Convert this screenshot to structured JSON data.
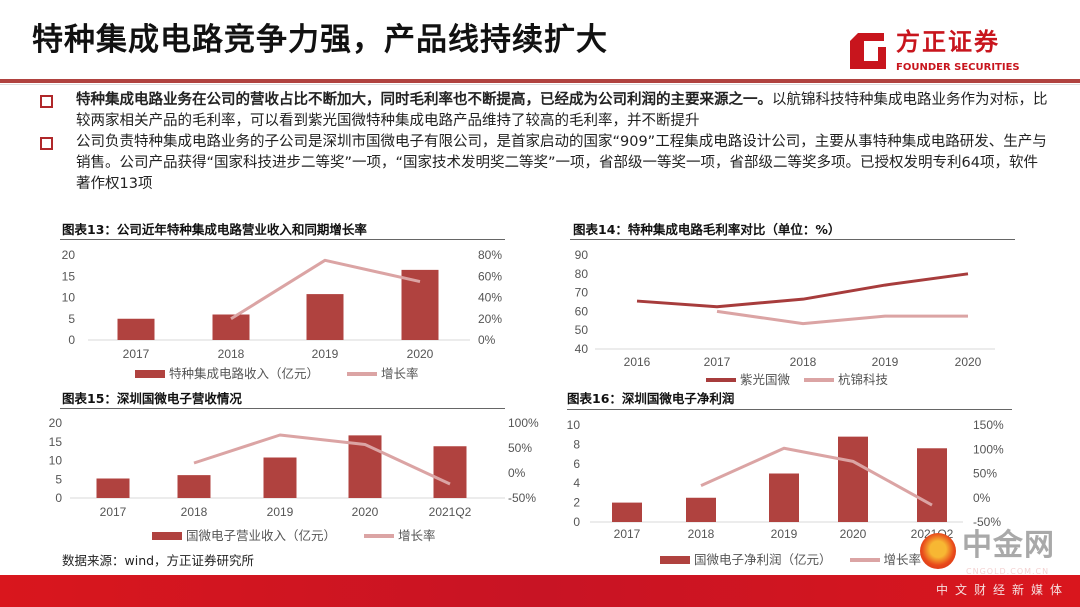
{
  "header": {
    "title": "特种集成电路竞争力强，产品线持续扩大",
    "logo_cn": "方正证券",
    "logo_en": "FOUNDER SECURITIES"
  },
  "bullets": [
    {
      "bold": "特种集成电路业务在公司的营收占比不断加大，同时毛利率也不断提高，已经成为公司利润的主要来源之一。",
      "text": "以航锦科技特种集成电路业务作为对标，比较两家相关产品的毛利率，可以看到紫光国微特种集成电路产品维持了较高的毛利率，并不断提升"
    },
    {
      "bold": "",
      "text": "公司负责特种集成电路业务的子公司是深圳市国微电子有限公司，是首家启动的国家“909”工程集成电路设计公司，主要从事特种集成电路研发、生产与销售。公司产品获得“国家科技进步二等奖”一项，“国家技术发明奖二等奖”一项，省部级一等奖一项，省部级二等奖多项。已授权发明专利64项，软件著作权13项"
    }
  ],
  "chart_data": [
    {
      "type": "bar+line",
      "title": "图表13：公司近年特种集成电路营业收入和同期增长率",
      "categories": [
        "2017",
        "2018",
        "2019",
        "2020"
      ],
      "series": [
        {
          "name": "特种集成电路收入（亿元）",
          "type": "bar",
          "axis": "left",
          "values": [
            5.0,
            6.0,
            10.8,
            16.5
          ]
        },
        {
          "name": "增长率",
          "type": "line",
          "axis": "right",
          "values": [
            null,
            20,
            75,
            55
          ]
        }
      ],
      "ylim": [
        0,
        20
      ],
      "yticks": [
        "0",
        "5",
        "10",
        "15",
        "20"
      ],
      "y2lim": [
        0,
        80
      ],
      "y2ticks": [
        "0%",
        "20%",
        "40%",
        "60%",
        "80%"
      ],
      "legend": "bottom"
    },
    {
      "type": "line",
      "title": "图表14：特种集成电路毛利率对比（单位：%）",
      "categories": [
        "2016",
        "2017",
        "2018",
        "2019",
        "2020"
      ],
      "series": [
        {
          "name": "紫光国微",
          "values": [
            65.5,
            62.5,
            66.5,
            74,
            80
          ]
        },
        {
          "name": "杭锦科技",
          "values": [
            null,
            60,
            53.5,
            57.5,
            57.5
          ]
        }
      ],
      "ylim": [
        40,
        90
      ],
      "yticks": [
        "40",
        "50",
        "60",
        "70",
        "80",
        "90"
      ],
      "legend": "bottom"
    },
    {
      "type": "bar+line",
      "title": "图表15：深圳国微电子营收情况",
      "categories": [
        "2017",
        "2018",
        "2019",
        "2020",
        "2021Q2"
      ],
      "series": [
        {
          "name": "国微电子营业收入（亿元）",
          "type": "bar",
          "axis": "left",
          "values": [
            5.2,
            6.1,
            10.8,
            16.7,
            13.8
          ]
        },
        {
          "name": "增长率",
          "type": "line",
          "axis": "right",
          "values": [
            null,
            20,
            76,
            57,
            -22
          ]
        }
      ],
      "ylim": [
        0,
        20
      ],
      "yticks": [
        "0",
        "5",
        "10",
        "15",
        "20"
      ],
      "y2lim": [
        -50,
        100
      ],
      "y2ticks": [
        "-50%",
        "0%",
        "50%",
        "100%"
      ],
      "legend": "bottom"
    },
    {
      "type": "bar+line",
      "title": "图表16：深圳国微电子净利润",
      "categories": [
        "2017",
        "2018",
        "2019",
        "2020",
        "2021Q2"
      ],
      "series": [
        {
          "name": "国微电子净利润（亿元）",
          "type": "bar",
          "axis": "left",
          "values": [
            2.0,
            2.5,
            5.0,
            8.8,
            7.6
          ]
        },
        {
          "name": "增长率",
          "type": "line",
          "axis": "right",
          "values": [
            null,
            25,
            102,
            75,
            -15
          ]
        }
      ],
      "ylim": [
        0,
        10
      ],
      "yticks": [
        "0",
        "2",
        "4",
        "6",
        "8",
        "10"
      ],
      "y2lim": [
        -50,
        150
      ],
      "y2ticks": [
        "-50%",
        "0%",
        "50%",
        "100%",
        "150%"
      ],
      "legend": "bottom"
    }
  ],
  "source": "数据来源：wind，方正证券研究所",
  "colors": {
    "bar": "#b0423f",
    "line_light": "#dba4a4",
    "line_dark": "#a73c3c",
    "footer": "#d9161d"
  },
  "watermark": {
    "cn": "中金网",
    "en": "CNGOLD.COM.CN",
    "sub": "中文财经新媒体"
  }
}
